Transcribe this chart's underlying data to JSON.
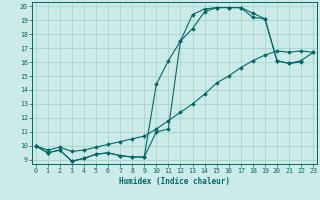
{
  "xlabel": "Humidex (Indice chaleur)",
  "bg_color": "#cceae8",
  "grid_color": "#a8d4d0",
  "line_color": "#006868",
  "xlim": [
    0,
    23
  ],
  "ylim": [
    9,
    20
  ],
  "xticks": [
    0,
    1,
    2,
    3,
    4,
    5,
    6,
    7,
    8,
    9,
    10,
    11,
    12,
    13,
    14,
    15,
    16,
    17,
    18,
    19,
    20,
    21,
    22,
    23
  ],
  "yticks": [
    9,
    10,
    11,
    12,
    13,
    14,
    15,
    16,
    17,
    18,
    19,
    20
  ],
  "line1_x": [
    0,
    1,
    2,
    3,
    4,
    5,
    6,
    7,
    8,
    9,
    10,
    11,
    12,
    13,
    14,
    15,
    16,
    17,
    18,
    19,
    20,
    21,
    22
  ],
  "line1_y": [
    10.0,
    9.5,
    9.7,
    8.9,
    9.1,
    9.4,
    9.5,
    9.3,
    9.2,
    9.2,
    14.4,
    16.1,
    17.5,
    18.4,
    19.6,
    19.9,
    19.9,
    19.9,
    19.5,
    19.1,
    16.1,
    15.9,
    16.0
  ],
  "line2_x": [
    0,
    1,
    2,
    3,
    4,
    5,
    6,
    7,
    8,
    9,
    10,
    11,
    12,
    13,
    14,
    15,
    16,
    17,
    18,
    19,
    20,
    21,
    22,
    23
  ],
  "line2_y": [
    10.0,
    9.5,
    9.7,
    8.9,
    9.1,
    9.4,
    9.5,
    9.3,
    9.2,
    9.2,
    11.0,
    11.2,
    17.5,
    19.4,
    19.8,
    19.9,
    19.9,
    19.9,
    19.2,
    19.1,
    16.1,
    15.9,
    16.1,
    16.7
  ],
  "line3_x": [
    0,
    1,
    2,
    3,
    4,
    5,
    6,
    7,
    8,
    9,
    10,
    11,
    12,
    13,
    14,
    15,
    16,
    17,
    18,
    19,
    20,
    21,
    22,
    23
  ],
  "line3_y": [
    10.0,
    9.7,
    9.9,
    9.6,
    9.7,
    9.9,
    10.1,
    10.3,
    10.5,
    10.7,
    11.2,
    11.8,
    12.4,
    13.0,
    13.7,
    14.5,
    15.0,
    15.6,
    16.1,
    16.5,
    16.8,
    16.7,
    16.8,
    16.7
  ]
}
